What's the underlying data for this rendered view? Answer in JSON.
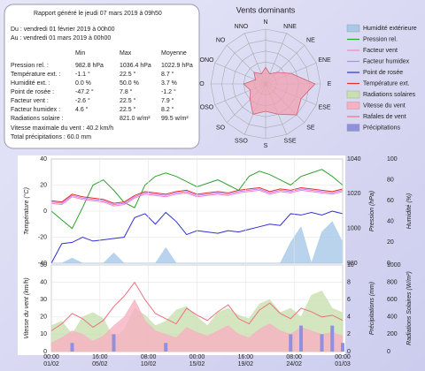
{
  "report": {
    "title": "Rapport généré le jeudi 07 mars 2019 à 09h50",
    "from": "Du : vendredi 01 février 2019 à 00h00",
    "to": "Au : vendredi 01 mars 2019 à 00h00",
    "columns": [
      "Min",
      "Max",
      "Moyenne"
    ],
    "rows": [
      [
        "Pression rel. :",
        "982.8 hPa",
        "1036.4 hPa",
        "1022.9 hPa"
      ],
      [
        "Température ext. :",
        "-1.1 °",
        "22.5 °",
        "8.7 °"
      ],
      [
        "Humidité ext. :",
        "0.0 %",
        "50.0 %",
        "3.7 %"
      ],
      [
        "Point de rosée :",
        "-47.2 °",
        "7.8 °",
        "-1.2 °"
      ],
      [
        "Facteur vent :",
        "-2.6 °",
        "22.5 °",
        "7.9 °"
      ],
      [
        "Facteur humidex :",
        "4.6 °",
        "22.5 °",
        "8.2 °"
      ],
      [
        "Radiations solaire :",
        null,
        "821.0 w/m²",
        "99.5 w/m²"
      ]
    ],
    "wind_max": "Vitesse maximale du vent : 40.2 km/h",
    "rain_total": "Total précipitations : 60.0 mm"
  },
  "chart_data": [
    {
      "type": "polar",
      "title": "Vents dominants",
      "categories": [
        "N",
        "NNE",
        "NE",
        "ENE",
        "E",
        "ESE",
        "SE",
        "SSE",
        "S",
        "SSO",
        "SO",
        "OSO",
        "O",
        "ONO",
        "NO",
        "NNO"
      ],
      "values": [
        3,
        2,
        3,
        5,
        9,
        7,
        8,
        6,
        5,
        6,
        4,
        3,
        4,
        2,
        3,
        2
      ],
      "color": "#f0a0b0",
      "rlim": [
        0,
        10
      ]
    },
    {
      "type": "line",
      "x": [
        0,
        1,
        2,
        3,
        4,
        5,
        6,
        7,
        8,
        9,
        10,
        11,
        12,
        13,
        14,
        15,
        16,
        17,
        18,
        19,
        20,
        21,
        22,
        23,
        24,
        25,
        26,
        27,
        28
      ],
      "xlim": [
        0,
        28
      ],
      "ylabel": "Température (°C)",
      "ylim": [
        -40,
        40
      ],
      "yticks": [
        -40,
        -20,
        0,
        20,
        40
      ],
      "y2label": "Pression (hPa)",
      "y2lim": [
        980,
        1040
      ],
      "y2ticks": [
        980,
        1000,
        1020,
        1040
      ],
      "y3label": "Humidité (%)",
      "y3lim": [
        0,
        100
      ],
      "y3ticks": [
        0,
        20,
        40,
        60,
        80,
        100
      ],
      "grid": true,
      "series": [
        {
          "name": "Humidité extérieure",
          "color": "#a8c8e8",
          "style": "area",
          "axis": "y3",
          "values": [
            0,
            0,
            5,
            0,
            0,
            0,
            10,
            0,
            0,
            0,
            0,
            15,
            0,
            0,
            0,
            0,
            0,
            0,
            0,
            0,
            0,
            0,
            0,
            20,
            35,
            0,
            30,
            40,
            20
          ]
        },
        {
          "name": "Pression rel.",
          "color": "#30a030",
          "style": "line",
          "axis": "y2",
          "values": [
            1010,
            1005,
            1000,
            1012,
            1025,
            1028,
            1022,
            1015,
            1012,
            1025,
            1030,
            1032,
            1030,
            1027,
            1024,
            1026,
            1028,
            1025,
            1022,
            1030,
            1033,
            1031,
            1028,
            1025,
            1030,
            1032,
            1034,
            1030,
            1025
          ]
        },
        {
          "name": "Facteur vent",
          "color": "#ff80c0",
          "style": "line",
          "axis": "y",
          "values": [
            6,
            5,
            11,
            9,
            8,
            7,
            4,
            5,
            10,
            13,
            12,
            11,
            13,
            14,
            11,
            12,
            13,
            12,
            14,
            15,
            16,
            13,
            15,
            14,
            16,
            15,
            14,
            13,
            15
          ]
        },
        {
          "name": "Facteur humidex",
          "color": "#c080ff",
          "style": "line",
          "axis": "y",
          "values": [
            7,
            6,
            12,
            10,
            9,
            8,
            5,
            6,
            11,
            14,
            13,
            12,
            14,
            15,
            12,
            13,
            14,
            13,
            15,
            16,
            17,
            14,
            16,
            15,
            17,
            16,
            15,
            14,
            16
          ]
        },
        {
          "name": "Point de rosée",
          "color": "#3030d0",
          "style": "line",
          "axis": "y",
          "values": [
            -40,
            -25,
            -24,
            -20,
            -23,
            -22,
            -21,
            -20,
            -5,
            -2,
            -10,
            -1,
            -8,
            -18,
            -15,
            -16,
            -17,
            -15,
            -16,
            -14,
            -12,
            -10,
            -11,
            -2,
            -3,
            -1,
            -3,
            0,
            -2
          ]
        },
        {
          "name": "Température ext.",
          "color": "#e03030",
          "style": "line",
          "axis": "y",
          "values": [
            8,
            7,
            13,
            11,
            10,
            9,
            6,
            7,
            12,
            15,
            14,
            13,
            15,
            16,
            13,
            14,
            15,
            14,
            16,
            17,
            18,
            15,
            17,
            16,
            18,
            17,
            16,
            15,
            17
          ]
        }
      ]
    },
    {
      "type": "line",
      "x": [
        0,
        1,
        2,
        3,
        4,
        5,
        6,
        7,
        8,
        9,
        10,
        11,
        12,
        13,
        14,
        15,
        16,
        17,
        18,
        19,
        20,
        21,
        22,
        23,
        24,
        25,
        26,
        27,
        28
      ],
      "xlim": [
        0,
        28
      ],
      "xticks": [
        {
          "value": 0,
          "label": [
            "00:00",
            "01/02"
          ]
        },
        {
          "value": 4.667,
          "label": [
            "16:00",
            "05/02"
          ]
        },
        {
          "value": 9.333,
          "label": [
            "08:00",
            "10/02"
          ]
        },
        {
          "value": 14,
          "label": [
            "00:00",
            "15/02"
          ]
        },
        {
          "value": 18.667,
          "label": [
            "16:00",
            "19/02"
          ]
        },
        {
          "value": 23.333,
          "label": [
            "08:00",
            "24/02"
          ]
        },
        {
          "value": 28,
          "label": [
            "00:00",
            "01/03"
          ]
        }
      ],
      "ylabel": "Vitesse du vent (km/h)",
      "ylim": [
        0,
        50
      ],
      "yticks": [
        0,
        10,
        20,
        30,
        40,
        50
      ],
      "y2label": "Précipitations (mm)",
      "y2lim": [
        0,
        10
      ],
      "y2ticks": [
        0,
        2,
        4,
        6,
        8,
        10
      ],
      "y3label": "Radiations Solaires (W/m²)",
      "y3lim": [
        0,
        1000
      ],
      "y3ticks": [
        0,
        200,
        400,
        600,
        800,
        1000
      ],
      "grid": true,
      "series": [
        {
          "name": "Radiations solaires",
          "color": "#c8e0b0",
          "style": "area",
          "axis": "y3",
          "values": [
            300,
            350,
            200,
            400,
            450,
            380,
            150,
            250,
            500,
            420,
            300,
            350,
            480,
            520,
            400,
            300,
            450,
            500,
            420,
            380,
            550,
            600,
            450,
            500,
            400,
            650,
            700,
            500,
            450
          ]
        },
        {
          "name": "Vitesse du vent",
          "color": "#f8b0c0",
          "style": "area",
          "axis": "y",
          "values": [
            5,
            8,
            12,
            10,
            6,
            9,
            15,
            20,
            30,
            18,
            12,
            10,
            8,
            14,
            11,
            9,
            12,
            15,
            10,
            8,
            13,
            16,
            12,
            10,
            14,
            12,
            10,
            11,
            9
          ]
        },
        {
          "name": "Rafales de vent",
          "color": "#f07080",
          "style": "line",
          "axis": "y",
          "values": [
            12,
            16,
            22,
            19,
            14,
            18,
            26,
            32,
            40,
            30,
            22,
            19,
            16,
            25,
            21,
            18,
            23,
            27,
            19,
            16,
            24,
            28,
            22,
            19,
            25,
            23,
            20,
            21,
            18
          ]
        },
        {
          "name": "Précipitations",
          "color": "#9090e0",
          "style": "bar",
          "axis": "y2",
          "values": [
            0,
            0,
            1,
            0,
            0,
            0,
            2,
            0,
            0,
            0,
            0,
            1,
            0,
            0,
            0,
            0,
            0,
            0,
            0,
            0,
            0,
            0,
            0,
            2,
            3,
            0,
            2,
            3,
            1
          ]
        }
      ]
    }
  ]
}
